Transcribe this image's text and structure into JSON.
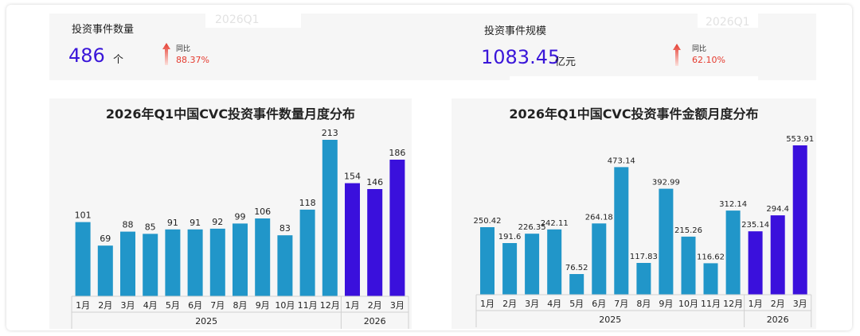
{
  "colors": {
    "bar_2025": "#2196c9",
    "bar_2026": "#3a10dc",
    "kpi_value": "#3a16d9",
    "yoy": "#e53a2e"
  },
  "kpi": [
    {
      "title": "投资事件数量",
      "period": "2026Q1",
      "value": "486",
      "unit": "个",
      "yoy_label": "同比",
      "yoy_value": "88.37%",
      "trend_icon": "arrow-up-icon"
    },
    {
      "title": "投资事件规模",
      "period": "2026Q1",
      "value": "1083.45",
      "unit": "亿元",
      "yoy_label": "同比",
      "yoy_value": "62.10%",
      "trend_icon": "arrow-up-icon"
    }
  ],
  "chart_data": [
    {
      "type": "bar",
      "title": "2026年Q1中国CVC投资事件数量月度分布",
      "categories": [
        "1月",
        "2月",
        "3月",
        "4月",
        "5月",
        "6月",
        "7月",
        "8月",
        "9月",
        "10月",
        "11月",
        "12月",
        "1月",
        "2月",
        "3月"
      ],
      "groups": [
        {
          "label": "2025",
          "count": 12
        },
        {
          "label": "2026",
          "count": 3
        }
      ],
      "values": [
        101,
        69,
        88,
        85,
        91,
        91,
        92,
        99,
        106,
        83,
        118,
        213,
        154,
        146,
        186
      ],
      "value_labels": [
        "101",
        "69",
        "88",
        "85",
        "91",
        "91",
        "92",
        "99",
        "106",
        "83",
        "118",
        "213",
        "154",
        "146",
        "186"
      ],
      "ylim": [
        0,
        213
      ]
    },
    {
      "type": "bar",
      "title": "2026年Q1中国CVC投资事件金额月度分布",
      "categories": [
        "1月",
        "2月",
        "3月",
        "4月",
        "5月",
        "6月",
        "7月",
        "8月",
        "9月",
        "10月",
        "11月",
        "12月",
        "1月",
        "2月",
        "3月"
      ],
      "groups": [
        {
          "label": "2025",
          "count": 12
        },
        {
          "label": "2026",
          "count": 3
        }
      ],
      "values": [
        250.42,
        191.6,
        226.35,
        242.11,
        76.52,
        264.18,
        473.14,
        117.83,
        392.99,
        215.26,
        116.62,
        312.14,
        235.14,
        294.4,
        553.91
      ],
      "value_labels": [
        "250.42",
        "191.6",
        "226.35",
        "242.11",
        "76.52",
        "264.18",
        "473.14",
        "117.83",
        "392.99",
        "215.26",
        "116.62",
        "312.14",
        "235.14",
        "294.4",
        "553.91"
      ],
      "ylim": [
        0,
        553.91
      ]
    }
  ]
}
